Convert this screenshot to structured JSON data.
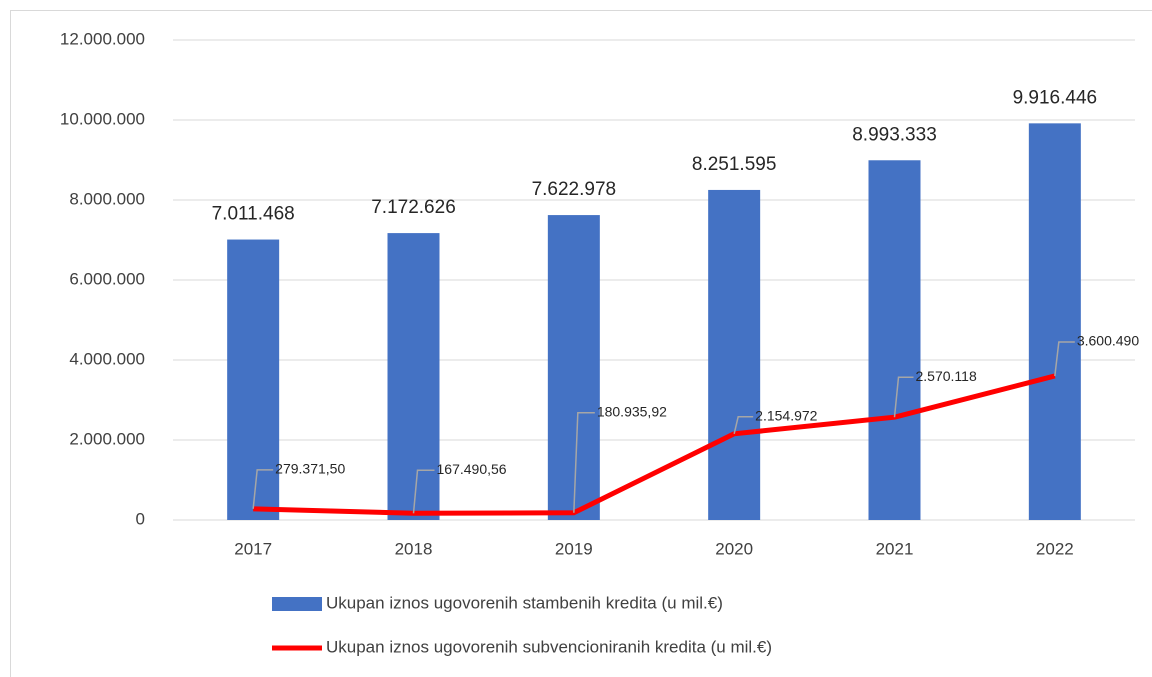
{
  "chart_data": {
    "type": "bar-line",
    "categories": [
      "2017",
      "2018",
      "2019",
      "2020",
      "2021",
      "2022"
    ],
    "series": [
      {
        "name": "Ukupan iznos ugovorenih stambenih kredita (u mil.€)",
        "type": "bar",
        "color": "#4472c4",
        "values": [
          7011468,
          7172626,
          7622978,
          8251595,
          8993333,
          9916446
        ],
        "value_labels": [
          "7.011.468",
          "7.172.626",
          "7.622.978",
          "8.251.595",
          "8.993.333",
          "9.916.446"
        ]
      },
      {
        "name": "Ukupan iznos ugovorenih subvencioniranih kredita (u mil.€)",
        "type": "line",
        "color": "#ff0000",
        "values": [
          279371.5,
          167490.56,
          180935.92,
          2154972,
          2570118,
          3600490
        ],
        "value_labels": [
          "279.371,50",
          "167.490,56",
          "180.935,92",
          "2.154.972",
          "2.570.118",
          "3.600.490"
        ]
      }
    ],
    "ylim": [
      0,
      12000000
    ],
    "yticks": [
      0,
      {
        "value": 2000000,
        "label": "2.000.000"
      },
      {
        "value": 4000000,
        "label": "4.000.000"
      },
      {
        "value": 6000000,
        "label": "6.000.000"
      },
      {
        "value": 8000000,
        "label": "8.000.000"
      },
      {
        "value": 10000000,
        "label": "10.000.000"
      },
      {
        "value": 12000000,
        "label": "12.000.000"
      }
    ],
    "grid": true
  }
}
